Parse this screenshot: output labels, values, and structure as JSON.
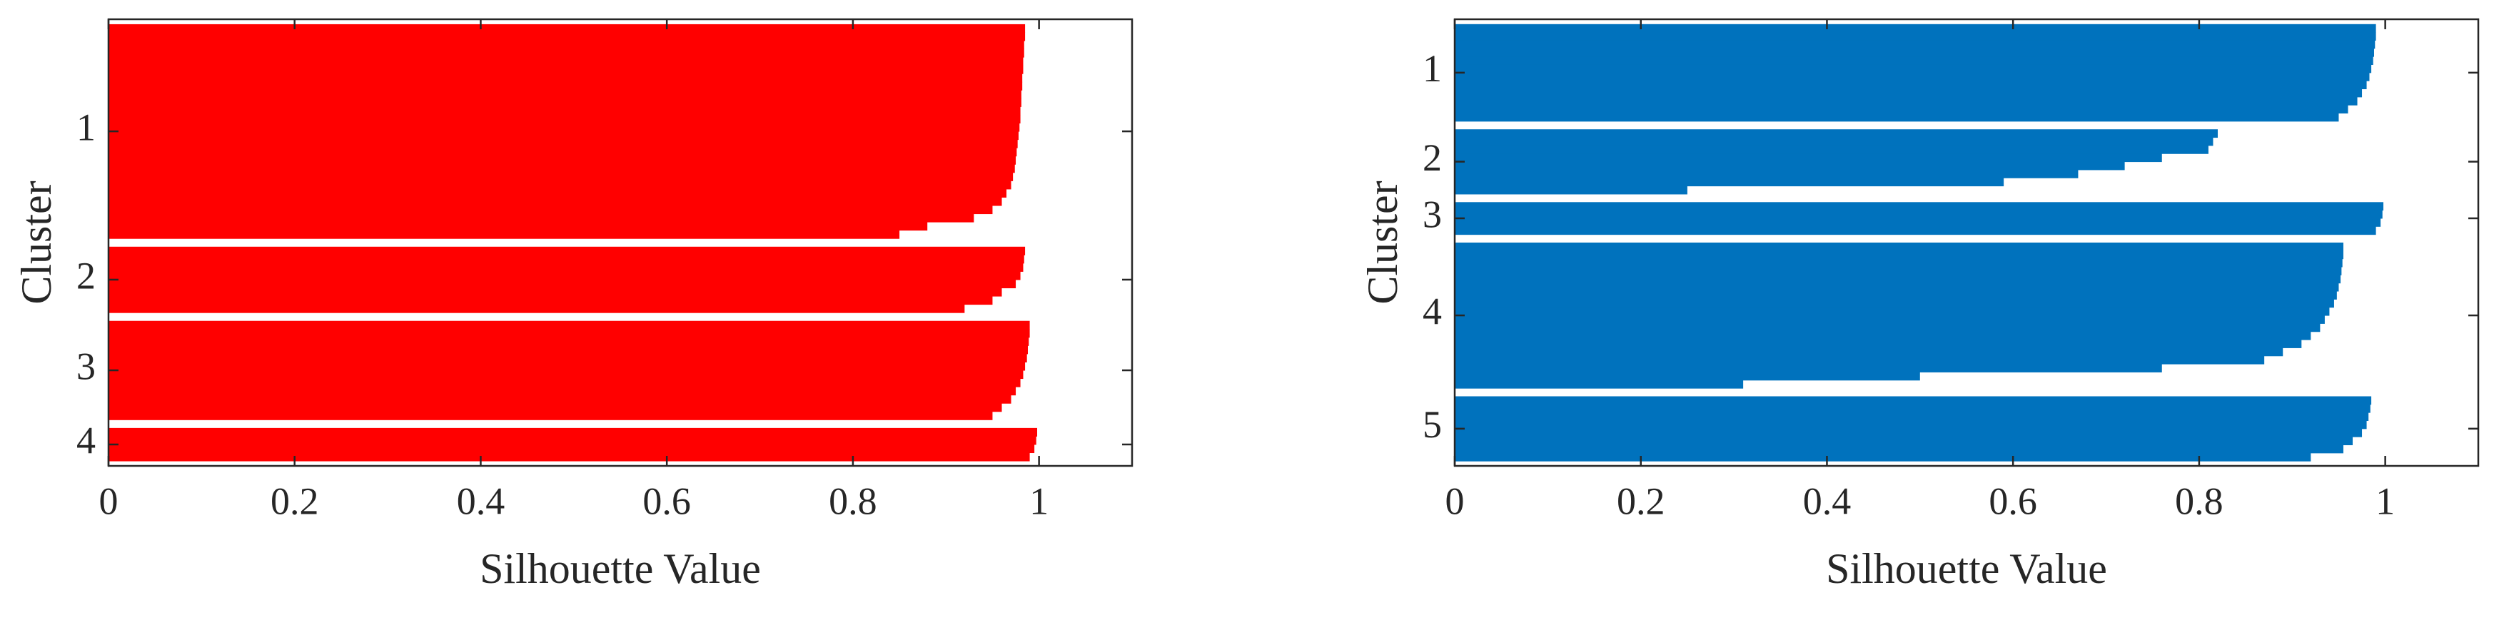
{
  "chart_data": [
    {
      "type": "silhouette",
      "xlabel": "Silhouette Value",
      "ylabel": "Cluster",
      "color": "#ff0000",
      "xlim": [
        0,
        1.1
      ],
      "xticks": [
        0,
        0.2,
        0.4,
        0.6,
        0.8,
        1
      ],
      "clusters": [
        {
          "label": "1",
          "values": [
            0.985,
            0.985,
            0.984,
            0.984,
            0.983,
            0.983,
            0.982,
            0.982,
            0.981,
            0.981,
            0.98,
            0.98,
            0.979,
            0.978,
            0.977,
            0.976,
            0.975,
            0.974,
            0.972,
            0.97,
            0.965,
            0.96,
            0.95,
            0.93,
            0.88,
            0.85
          ]
        },
        {
          "label": "2",
          "values": [
            0.985,
            0.984,
            0.983,
            0.98,
            0.975,
            0.96,
            0.95,
            0.92
          ]
        },
        {
          "label": "3",
          "values": [
            0.99,
            0.99,
            0.989,
            0.988,
            0.987,
            0.985,
            0.983,
            0.98,
            0.975,
            0.97,
            0.96,
            0.95
          ]
        },
        {
          "label": "4",
          "values": [
            0.998,
            0.997,
            0.995,
            0.99
          ]
        }
      ]
    },
    {
      "type": "silhouette",
      "xlabel": "Silhouette Value",
      "ylabel": "Cluster",
      "color": "#0072bd",
      "xlim": [
        0,
        1.1
      ],
      "xticks": [
        0,
        0.2,
        0.4,
        0.6,
        0.8,
        1
      ],
      "clusters": [
        {
          "label": "1",
          "values": [
            0.99,
            0.99,
            0.989,
            0.988,
            0.987,
            0.985,
            0.983,
            0.98,
            0.975,
            0.97,
            0.96,
            0.95
          ]
        },
        {
          "label": "2",
          "values": [
            0.82,
            0.815,
            0.81,
            0.76,
            0.72,
            0.67,
            0.59,
            0.25
          ]
        },
        {
          "label": "3",
          "values": [
            0.998,
            0.997,
            0.995,
            0.99
          ]
        },
        {
          "label": "4",
          "values": [
            0.955,
            0.955,
            0.954,
            0.953,
            0.952,
            0.95,
            0.948,
            0.945,
            0.94,
            0.935,
            0.93,
            0.92,
            0.91,
            0.89,
            0.87,
            0.76,
            0.5,
            0.31
          ]
        },
        {
          "label": "5",
          "values": [
            0.985,
            0.984,
            0.982,
            0.98,
            0.975,
            0.965,
            0.955,
            0.92
          ]
        }
      ]
    }
  ]
}
